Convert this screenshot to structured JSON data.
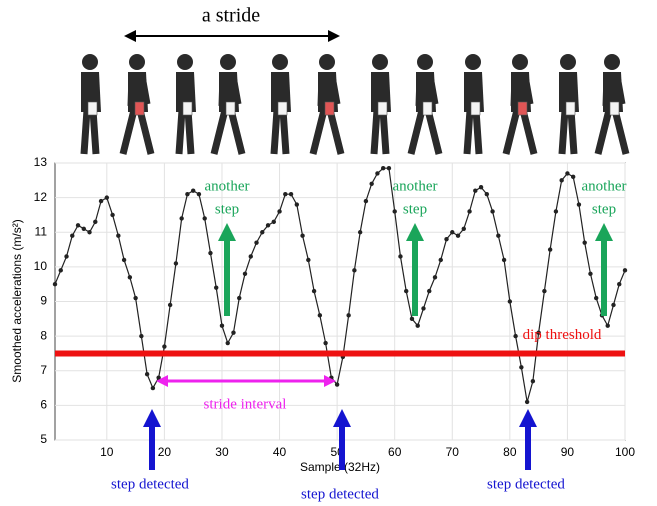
{
  "chart_data": {
    "type": "line",
    "stride_label": "a stride",
    "xlabel": "Sample (32Hz)",
    "ylabel": "Smoothed accelerations (m/s²)",
    "x": [
      1,
      2,
      3,
      4,
      5,
      6,
      7,
      8,
      9,
      10,
      11,
      12,
      13,
      14,
      15,
      16,
      17,
      18,
      19,
      20,
      21,
      22,
      23,
      24,
      25,
      26,
      27,
      28,
      29,
      30,
      31,
      32,
      33,
      34,
      35,
      36,
      37,
      38,
      39,
      40,
      41,
      42,
      43,
      44,
      45,
      46,
      47,
      48,
      49,
      50,
      51,
      52,
      53,
      54,
      55,
      56,
      57,
      58,
      59,
      60,
      61,
      62,
      63,
      64,
      65,
      66,
      67,
      68,
      69,
      70,
      71,
      72,
      73,
      74,
      75,
      76,
      77,
      78,
      79,
      80,
      81,
      82,
      83,
      84,
      85,
      86,
      87,
      88,
      89,
      90,
      91,
      92,
      93,
      94,
      95,
      96,
      97,
      98,
      99,
      100
    ],
    "values": [
      9.5,
      9.9,
      10.3,
      10.9,
      11.2,
      11.1,
      11.0,
      11.3,
      11.9,
      12.0,
      11.5,
      10.9,
      10.2,
      9.7,
      9.1,
      8.0,
      6.9,
      6.5,
      6.8,
      7.7,
      8.9,
      10.1,
      11.4,
      12.1,
      12.2,
      12.1,
      11.4,
      10.4,
      9.4,
      8.3,
      7.8,
      8.1,
      9.1,
      9.8,
      10.3,
      10.7,
      11.0,
      11.2,
      11.3,
      11.6,
      12.1,
      12.1,
      11.8,
      10.9,
      10.2,
      9.3,
      8.6,
      7.8,
      6.8,
      6.6,
      7.4,
      8.6,
      9.9,
      11.0,
      11.9,
      12.4,
      12.7,
      12.85,
      12.85,
      11.6,
      10.3,
      9.3,
      8.5,
      8.3,
      8.8,
      9.3,
      9.7,
      10.2,
      10.8,
      11.0,
      10.9,
      11.1,
      11.6,
      12.2,
      12.3,
      12.1,
      11.6,
      10.9,
      10.2,
      9.0,
      8.0,
      7.1,
      6.1,
      6.7,
      8.1,
      9.3,
      10.5,
      11.6,
      12.5,
      12.7,
      12.6,
      11.8,
      10.7,
      9.8,
      9.1,
      8.6,
      8.3,
      8.9,
      9.5,
      9.9
    ],
    "color": "#222222",
    "xlim": [
      1,
      100
    ],
    "ylim": [
      5,
      13
    ],
    "xticks": [
      10,
      20,
      30,
      40,
      50,
      60,
      70,
      80,
      90,
      100
    ],
    "yticks": [
      5,
      6,
      7,
      8,
      9,
      10,
      11,
      12,
      13
    ],
    "grid": true,
    "threshold": {
      "value": 7.5,
      "label": "dip threshold",
      "color": "#ee1111"
    },
    "another_step": [
      [
        "another",
        "step"
      ],
      [
        "another",
        "step"
      ],
      [
        "another",
        "step"
      ]
    ],
    "step_detected": [
      "step detected",
      "step detected",
      "step detected"
    ],
    "stride_interval": "stride interval"
  }
}
